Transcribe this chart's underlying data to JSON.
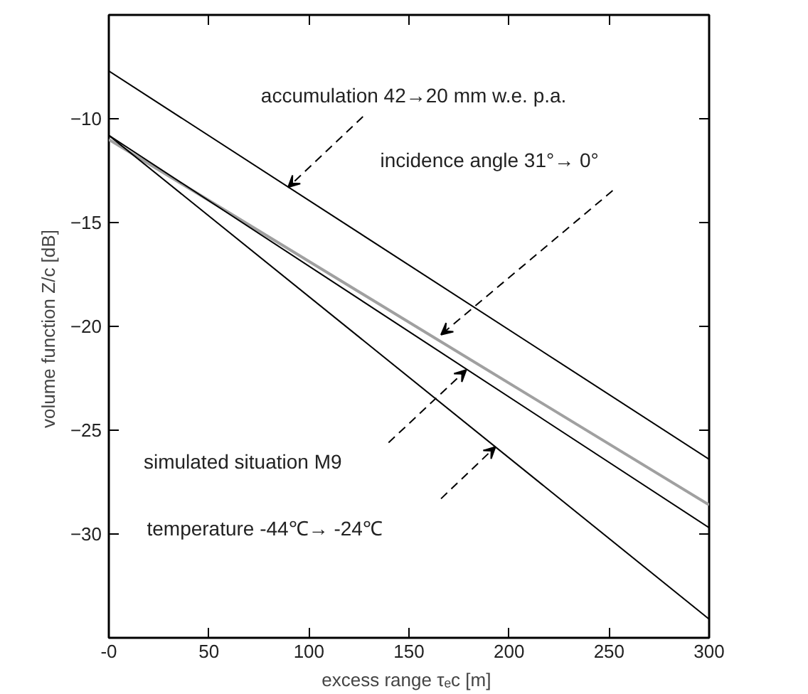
{
  "chart_data": {
    "type": "line",
    "xlabel": "excess range  τₑc [m]",
    "ylabel": "volume function  Z/c [dB]",
    "xlim": [
      0,
      300
    ],
    "ylim": [
      -35,
      -5
    ],
    "xticks": [
      {
        "value": 0,
        "label": "-0"
      },
      50,
      100,
      150,
      200,
      250,
      300
    ],
    "yticks": [
      -10,
      -15,
      -20,
      -25,
      -30
    ],
    "grid": false,
    "marker": "none",
    "line_style": "solid",
    "x": [
      0,
      300
    ],
    "series": [
      {
        "color": "#000000",
        "values": [
          -7.7,
          -26.4
        ]
      },
      {
        "color": "#a0a0a0",
        "values": [
          -11.0,
          -28.6
        ]
      },
      {
        "color": "#000000",
        "values": [
          -10.8,
          -29.7
        ]
      },
      {
        "color": "#000000",
        "values": [
          -10.8,
          -34.1
        ]
      }
    ],
    "annotations": [
      {
        "text": "accumulation  42→20 mm w.e. p.a.",
        "x": 89.6,
        "y": -13.3
      },
      {
        "text": "incidence angle  31°→ 0°",
        "x": 166,
        "y": -20.4
      },
      "simulated situation M9",
      "temperature  -44℃→ -24℃"
    ]
  }
}
